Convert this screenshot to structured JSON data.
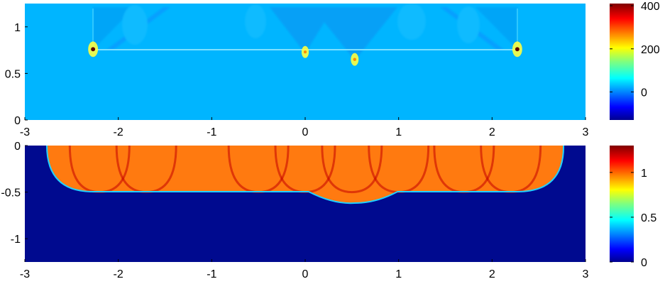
{
  "chart_data": [
    {
      "type": "heatmap",
      "title": "",
      "xlabel": "",
      "ylabel": "",
      "xlim": [
        -3,
        3
      ],
      "ylim": [
        0,
        1.25
      ],
      "x_ticks": [
        -3,
        -2,
        -1,
        0,
        1,
        2,
        3
      ],
      "x_tick_labels": [
        "-3",
        "-2",
        "-1",
        "0",
        "1",
        "2",
        "3"
      ],
      "y_ticks": [
        0,
        0.5,
        1
      ],
      "y_tick_labels": [
        "0",
        "0.5",
        "1"
      ],
      "background_value": 0,
      "features": {
        "horizontal_line": {
          "y": 0.75,
          "x_from": -2.27,
          "x_to": 2.27,
          "value": 60
        },
        "peaks": [
          {
            "x": -2.27,
            "y": 0.76,
            "value": 400
          },
          {
            "x": 0.0,
            "y": 0.73,
            "value": 150
          },
          {
            "x": 0.53,
            "y": 0.65,
            "value": 200
          },
          {
            "x": 2.27,
            "y": 0.76,
            "value": 400
          }
        ]
      },
      "colorbar": {
        "min": -130,
        "max": 410,
        "ticks": [
          0,
          200,
          400
        ],
        "tick_labels": [
          "0",
          "200",
          "400"
        ],
        "colormap": "jet"
      }
    },
    {
      "type": "heatmap",
      "title": "",
      "xlabel": "",
      "ylabel": "",
      "xlim": [
        -3,
        3
      ],
      "ylim": [
        -1.25,
        0
      ],
      "x_ticks": [
        -3,
        -2,
        -1,
        0,
        1,
        2,
        3
      ],
      "x_tick_labels": [
        "-3",
        "-2",
        "-1",
        "0",
        "1",
        "2",
        "3"
      ],
      "y_ticks": [
        0,
        -0.5,
        -1
      ],
      "y_tick_labels": [
        "0",
        "-0.5",
        "-1"
      ],
      "background_value": 0,
      "features": {
        "region_value": 0.95,
        "region_extent": {
          "x_from": -2.27,
          "x_to": 2.27,
          "y_bottom": -0.5
        },
        "end_caps": [
          {
            "cx": -2.27,
            "radius": 0.5
          },
          {
            "cx": 2.27,
            "radius": 0.5
          }
        ],
        "bump": {
          "cx": 0.53,
          "depth": -0.6
        },
        "arc_centers": [
          -2.2,
          -1.7,
          -0.5,
          0.0,
          0.5,
          1.0,
          1.7,
          2.2
        ],
        "arc_peak_value": 1.25
      },
      "colorbar": {
        "min": 0,
        "max": 1.3,
        "ticks": [
          0,
          0.5,
          1
        ],
        "tick_labels": [
          "0",
          "0.5",
          "1"
        ],
        "colormap": "jet"
      }
    }
  ]
}
